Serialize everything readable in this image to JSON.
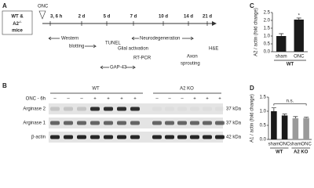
{
  "panel_a": {
    "label": "A",
    "mice_line1": "WT &",
    "mice_line2": "A2",
    "mice_sup": "-/-",
    "mice_line3": "mice",
    "onc": "ONC",
    "timepoints": [
      "3, 6 h",
      "2 d",
      "5 d",
      "7 d",
      "10 d",
      "14 d",
      "21 d"
    ],
    "western": "Western",
    "blotting": "blotting",
    "tunel": "TUNEL",
    "neurodegeneration": "Neurodegeneration",
    "glial": "Glial activation",
    "rtpcr": "RT-PCR",
    "gap43": "GAP-43",
    "axon": "Axon",
    "sprouting": "sprouting",
    "he": "H&E"
  },
  "panel_b": {
    "label": "B",
    "wt": "WT",
    "ko": "A2 KO",
    "onc_label": "ONC - 6h",
    "signs": [
      "–",
      "–",
      "–",
      "+",
      "+",
      "+",
      "+",
      "–",
      "–",
      "–",
      "+",
      "+",
      "+"
    ],
    "rows": [
      {
        "name": "Arginase 2",
        "size": "37 kDa"
      },
      {
        "name": "Arginase 1",
        "size": "37 kDa"
      },
      {
        "name": "β-actin",
        "size": "42 kDa"
      }
    ]
  },
  "chart_data": [
    {
      "type": "bar",
      "panel": "C",
      "ylabel": "A2 / actin (fold change)",
      "categories": [
        "sham",
        "ONC"
      ],
      "groups": [
        "WT"
      ],
      "values": [
        1.0,
        2.05
      ],
      "errors": [
        0.15,
        0.1
      ],
      "colors": [
        "#1a1a1a",
        "#1a1a1a"
      ],
      "ylim": [
        0,
        2.5
      ],
      "yticks": [
        {
          "value": 0,
          "label": "0.0"
        },
        0.5,
        {
          "value": 1,
          "label": "1.0"
        },
        1.5,
        {
          "value": 2,
          "label": "2.0"
        },
        2.5
      ],
      "annotation": "*"
    },
    {
      "type": "bar",
      "panel": "D",
      "ylabel": "A1 / actin (fold change)",
      "categories": [
        "sham",
        "ONC",
        "sham",
        "ONC"
      ],
      "groups": [
        "WT",
        "A2 KO"
      ],
      "values": [
        1.0,
        0.85,
        0.75,
        0.76
      ],
      "errors": [
        0.12,
        0.05,
        0.06,
        0.03
      ],
      "colors": [
        "#1a1a1a",
        "#1a1a1a",
        "#9a9a9a",
        "#9a9a9a"
      ],
      "ylim": [
        0,
        1.5
      ],
      "yticks": [
        {
          "value": 0,
          "label": "0.0"
        },
        0.5,
        {
          "value": 1,
          "label": "1.0"
        },
        1.5
      ],
      "annotation": "n.s."
    }
  ]
}
